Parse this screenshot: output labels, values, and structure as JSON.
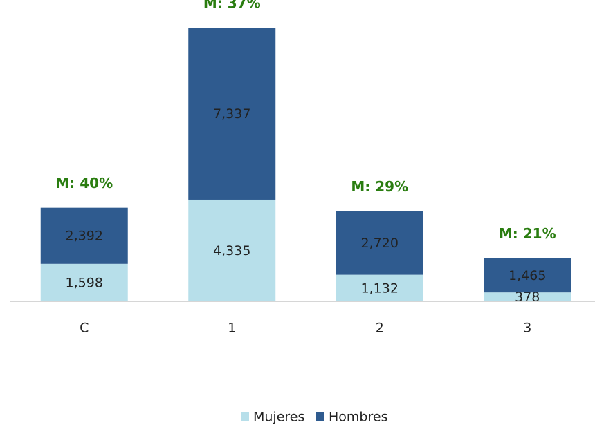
{
  "chart_data": {
    "type": "bar",
    "stacked": true,
    "categories": [
      "C",
      "1",
      "2",
      "3"
    ],
    "series": [
      {
        "name": "Mujeres",
        "color": "#b7dfea",
        "values": [
          1598,
          4335,
          1132,
          378
        ],
        "value_labels": [
          "1,598",
          "4,335",
          "1,132",
          "378"
        ]
      },
      {
        "name": "Hombres",
        "color": "#2f5b8f",
        "values": [
          2392,
          7337,
          2720,
          1465
        ],
        "value_labels": [
          "2,392",
          "7,337",
          "2,720",
          "1,465"
        ]
      }
    ],
    "annotations": [
      "M: 40%",
      "M: 37%",
      "M: 29%",
      "M: 21%"
    ],
    "ylim": [
      0,
      12000
    ],
    "legend": "bottom"
  }
}
